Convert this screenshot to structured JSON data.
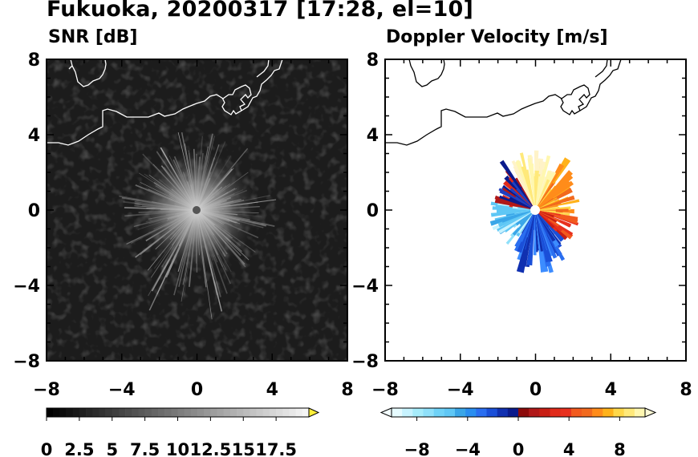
{
  "title": "Fukuoka, 20200317 [17:28, el=10]",
  "colors": {
    "coast_snr": "#ffffff",
    "coast_doppler": "#000000",
    "snr_background": "#1c1c1c"
  },
  "chart_data": [
    {
      "type": "heatmap",
      "title": "SNR [dB]",
      "xlim": [
        -8,
        8
      ],
      "ylim": [
        -8,
        8
      ],
      "x_ticks": [
        "−8",
        "−4",
        "0",
        "4",
        "8"
      ],
      "y_ticks": [
        "8",
        "4",
        "0",
        "−4",
        "−8"
      ],
      "colorbar": {
        "range": [
          0,
          20
        ],
        "extend": "max",
        "ticks": [
          "0",
          "2.5",
          "5",
          "7.5",
          "10",
          "12.5",
          "15",
          "17.5"
        ]
      }
    },
    {
      "type": "heatmap",
      "title": "Doppler Velocity [m/s]",
      "xlim": [
        -8,
        8
      ],
      "ylim": [
        -8,
        8
      ],
      "x_ticks": [
        "−8",
        "−4",
        "0",
        "4",
        "8"
      ],
      "y_ticks": [
        "8",
        "4",
        "0",
        "−4",
        "−8"
      ],
      "colorbar": {
        "range": [
          -10,
          10
        ],
        "extend": "both",
        "ticks": [
          "−8",
          "−4",
          "0",
          "4",
          "8"
        ]
      }
    }
  ]
}
